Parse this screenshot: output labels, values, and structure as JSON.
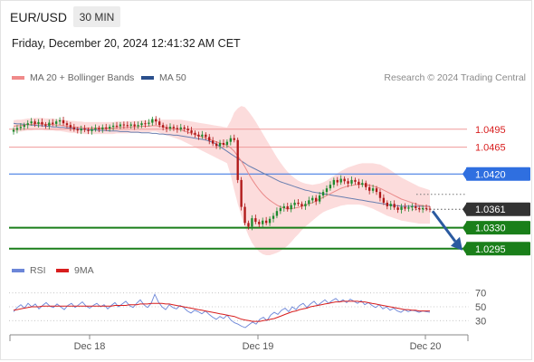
{
  "header": {
    "symbol": "EUR/USD",
    "interval": "30 MIN",
    "datetime": "Friday, December 20, 2024 12:41:32 AM CET"
  },
  "legend": {
    "main": [
      {
        "label": "MA 20 + Bollinger Bands",
        "color": "#f08a8a"
      },
      {
        "label": "MA 50",
        "color": "#2a4f8c"
      }
    ],
    "rsi": [
      {
        "label": "RSI",
        "color": "#6c86d8"
      },
      {
        "label": "9MA",
        "color": "#d81e1e"
      }
    ]
  },
  "copyright": "Research © 2024 Trading Central",
  "colors": {
    "resistance": "#d81e1e",
    "pivot": "#2f6fe0",
    "support": "#1a7f1a",
    "last": "#333333",
    "candle_up": "#1e8a2e",
    "candle_down": "#b01818",
    "band": "#fbd6d6",
    "ma50": "#6a7fb0",
    "ma20": "#ea8a8a",
    "arrow": "#2a5aa0"
  },
  "chart_data": [
    {
      "type": "candlestick",
      "title": "EUR/USD",
      "x_ticks": [
        "Dec 18",
        "Dec 19",
        "Dec 20"
      ],
      "ylim": [
        1.0278,
        1.0572
      ],
      "levels": [
        {
          "value": 1.0495,
          "label": "1.0495",
          "kind": "resistance"
        },
        {
          "value": 1.0465,
          "label": "1.0465",
          "kind": "resistance"
        },
        {
          "value": 1.042,
          "label": "1.0420",
          "kind": "pivot"
        },
        {
          "value": 1.0361,
          "label": "1.0361",
          "kind": "last"
        },
        {
          "value": 1.033,
          "label": "1.0330",
          "kind": "support"
        },
        {
          "value": 1.0295,
          "label": "1.0295",
          "kind": "support"
        }
      ],
      "close": [
        1.0494,
        1.0497,
        1.0499,
        1.0502,
        1.0505,
        1.0508,
        1.0504,
        1.0507,
        1.0503,
        1.0501,
        1.0506,
        1.0504,
        1.0508,
        1.051,
        1.0505,
        1.0502,
        1.0498,
        1.0495,
        1.0493,
        1.0496,
        1.0494,
        1.0492,
        1.0495,
        1.0497,
        1.0495,
        1.0498,
        1.0496,
        1.0499,
        1.0501,
        1.05,
        1.0503,
        1.0502,
        1.0501,
        1.0503,
        1.05,
        1.0502,
        1.0505,
        1.0504,
        1.0506,
        1.0512,
        1.0508,
        1.0502,
        1.0498,
        1.0496,
        1.0499,
        1.0497,
        1.0495,
        1.0498,
        1.0496,
        1.0493,
        1.0489,
        1.0486,
        1.0483,
        1.0486,
        1.0482,
        1.0476,
        1.0471,
        1.0467,
        1.0472,
        1.0469,
        1.0474,
        1.048,
        1.0477,
        1.041,
        1.0365,
        1.0338,
        1.0332,
        1.0346,
        1.034,
        1.0336,
        1.0342,
        1.0338,
        1.0345,
        1.035,
        1.0358,
        1.0363,
        1.0366,
        1.0361,
        1.0368,
        1.0372,
        1.037,
        1.0366,
        1.037,
        1.0376,
        1.038,
        1.0374,
        1.0384,
        1.039,
        1.0396,
        1.0402,
        1.041,
        1.0406,
        1.0412,
        1.0408,
        1.0404,
        1.041,
        1.0407,
        1.0402,
        1.0405,
        1.0398,
        1.0392,
        1.0396,
        1.039,
        1.038,
        1.0372,
        1.0366,
        1.037,
        1.0364,
        1.036,
        1.0365,
        1.0362,
        1.0364,
        1.0366,
        1.0363,
        1.0361,
        1.0363,
        1.0362,
        1.0361
      ],
      "ma50": [
        1.0505,
        1.0504,
        1.0504,
        1.0503,
        1.0503,
        1.0502,
        1.0502,
        1.0501,
        1.0501,
        1.05,
        1.05,
        1.0499,
        1.0499,
        1.0498,
        1.0498,
        1.0497,
        1.0497,
        1.0496,
        1.0496,
        1.0495,
        1.0495,
        1.0494,
        1.0494,
        1.0494,
        1.0493,
        1.0493,
        1.0493,
        1.0492,
        1.0492,
        1.0492,
        1.0491,
        1.0491,
        1.0491,
        1.049,
        1.049,
        1.049,
        1.0489,
        1.0489,
        1.0489,
        1.0488,
        1.0488,
        1.0487,
        1.0487,
        1.0486,
        1.0486,
        1.0485,
        1.0485,
        1.0484,
        1.0483,
        1.0482,
        1.0481,
        1.048,
        1.0479,
        1.0478,
        1.0477,
        1.0475,
        1.0473,
        1.047,
        1.0466,
        1.0462,
        1.0458,
        1.0454,
        1.045,
        1.0446,
        1.0442,
        1.0438,
        1.0434,
        1.0431,
        1.0428,
        1.0425,
        1.0422,
        1.0419,
        1.0416,
        1.0413,
        1.041,
        1.0407,
        1.0405,
        1.0403,
        1.0401,
        1.0399,
        1.0397,
        1.0395,
        1.0393,
        1.0392,
        1.039,
        1.0389,
        1.0388,
        1.0387,
        1.0386,
        1.0385,
        1.0384,
        1.0383,
        1.0382,
        1.0381,
        1.038,
        1.0379,
        1.0378,
        1.0377,
        1.0376,
        1.0375,
        1.0374,
        1.0373,
        1.0372,
        1.0371,
        1.037,
        1.0369,
        1.0368,
        1.0367,
        1.0367,
        1.0366,
        1.0366,
        1.0366,
        1.0366,
        1.0366,
        1.0366,
        1.0366,
        1.0366,
        1.0366
      ],
      "ma20": [
        1.05,
        1.0501,
        1.0501,
        1.0502,
        1.0503,
        1.0503,
        1.0504,
        1.0504,
        1.0504,
        1.0503,
        1.0503,
        1.0503,
        1.0502,
        1.0502,
        1.0501,
        1.05,
        1.0499,
        1.0499,
        1.0498,
        1.0498,
        1.0497,
        1.0497,
        1.0497,
        1.0497,
        1.0497,
        1.0497,
        1.0497,
        1.0497,
        1.0497,
        1.0498,
        1.0498,
        1.0498,
        1.0498,
        1.0499,
        1.0499,
        1.0499,
        1.05,
        1.05,
        1.05,
        1.0501,
        1.0501,
        1.05,
        1.0499,
        1.0498,
        1.0497,
        1.0496,
        1.0495,
        1.0494,
        1.0492,
        1.049,
        1.0488,
        1.0486,
        1.0484,
        1.0482,
        1.048,
        1.0478,
        1.0476,
        1.0474,
        1.0472,
        1.047,
        1.0468,
        1.0464,
        1.0458,
        1.045,
        1.0442,
        1.0432,
        1.0421,
        1.0411,
        1.0402,
        1.0394,
        1.0387,
        1.0381,
        1.0376,
        1.0372,
        1.0368,
        1.0365,
        1.0363,
        1.0362,
        1.0362,
        1.0363,
        1.0364,
        1.0366,
        1.0368,
        1.037,
        1.0372,
        1.0375,
        1.0378,
        1.0381,
        1.0384,
        1.0387,
        1.039,
        1.0393,
        1.0396,
        1.0398,
        1.04,
        1.0401,
        1.0402,
        1.0403,
        1.0403,
        1.0402,
        1.0401,
        1.04,
        1.0398,
        1.0396,
        1.0393,
        1.039,
        1.0387,
        1.0384,
        1.0381,
        1.0378,
        1.0376,
        1.0374,
        1.0372,
        1.037,
        1.0368,
        1.0367,
        1.0366,
        1.0365
      ],
      "band_width": [
        0.001,
        0.001,
        0.001,
        0.001,
        0.001,
        0.001,
        0.001,
        0.001,
        0.001,
        0.001,
        0.001,
        0.001,
        0.001,
        0.001,
        0.001,
        0.001,
        0.001,
        0.001,
        0.001,
        0.001,
        0.001,
        0.001,
        0.001,
        0.001,
        0.001,
        0.001,
        0.001,
        0.001,
        0.001,
        0.001,
        0.001,
        0.001,
        0.001,
        0.001,
        0.001,
        0.001,
        0.001,
        0.001,
        0.001,
        0.001,
        0.001,
        0.0011,
        0.0012,
        0.0013,
        0.0014,
        0.0015,
        0.0016,
        0.0017,
        0.0018,
        0.0019,
        0.002,
        0.0021,
        0.0022,
        0.0023,
        0.0024,
        0.0025,
        0.0026,
        0.0027,
        0.0028,
        0.0029,
        0.003,
        0.0045,
        0.0065,
        0.008,
        0.0092,
        0.01,
        0.0104,
        0.0106,
        0.0106,
        0.0104,
        0.0101,
        0.0097,
        0.0092,
        0.0086,
        0.008,
        0.0074,
        0.0068,
        0.0062,
        0.0056,
        0.005,
        0.0045,
        0.004,
        0.0036,
        0.0033,
        0.003,
        0.0028,
        0.0026,
        0.0025,
        0.0025,
        0.0026,
        0.0027,
        0.0028,
        0.0029,
        0.003,
        0.0031,
        0.0032,
        0.0033,
        0.0034,
        0.0035,
        0.0036,
        0.0037,
        0.0038,
        0.0039,
        0.004,
        0.004,
        0.004,
        0.0039,
        0.0038,
        0.0037,
        0.0036,
        0.0035,
        0.0034,
        0.0033,
        0.0032,
        0.0031,
        0.003,
        0.0029,
        0.0028,
        0.0027,
        0.0026
      ],
      "projection": {
        "from": 1.0361,
        "to": 1.0295
      }
    },
    {
      "type": "line",
      "x_ticks": [
        "Dec 18",
        "Dec 19",
        "Dec 20"
      ],
      "ylim": [
        20,
        80
      ],
      "y_ticks": [
        70,
        50,
        30
      ],
      "series": [
        {
          "name": "RSI",
          "values": [
            43,
            49,
            53,
            48,
            55,
            50,
            54,
            47,
            52,
            56,
            51,
            49,
            54,
            50,
            46,
            52,
            55,
            49,
            53,
            57,
            51,
            48,
            52,
            55,
            50,
            53,
            47,
            52,
            56,
            50,
            54,
            58,
            52,
            49,
            55,
            60,
            53,
            49,
            55,
            68,
            57,
            50,
            46,
            53,
            49,
            47,
            52,
            49,
            44,
            41,
            45,
            43,
            40,
            44,
            39,
            35,
            32,
            36,
            33,
            38,
            31,
            27,
            25,
            22,
            20,
            24,
            28,
            25,
            32,
            35,
            30,
            38,
            42,
            39,
            45,
            48,
            43,
            50,
            46,
            52,
            55,
            49,
            54,
            58,
            52,
            56,
            60,
            55,
            59,
            62,
            57,
            60,
            56,
            61,
            58,
            55,
            59,
            53,
            56,
            52,
            49,
            53,
            47,
            50,
            45,
            48,
            44,
            42,
            46,
            43,
            45,
            44,
            42,
            44,
            43,
            42
          ]
        },
        {
          "name": "9MA",
          "values": [
            45,
            46,
            47,
            48,
            49,
            50,
            50,
            50,
            51,
            51,
            51,
            51,
            51,
            51,
            51,
            51,
            51,
            51,
            51,
            51,
            51,
            51,
            51,
            51,
            51,
            51,
            51,
            51,
            52,
            52,
            52,
            52,
            53,
            53,
            53,
            54,
            54,
            54,
            55,
            55,
            55,
            55,
            54,
            54,
            53,
            52,
            51,
            50,
            49,
            48,
            47,
            46,
            45,
            44,
            43,
            42,
            41,
            40,
            39,
            38,
            37,
            36,
            34,
            32,
            31,
            30,
            29,
            29,
            29,
            30,
            31,
            32,
            33,
            35,
            37,
            39,
            41,
            43,
            44,
            46,
            47,
            48,
            50,
            51,
            52,
            53,
            54,
            55,
            56,
            57,
            57,
            58,
            58,
            58,
            58,
            58,
            57,
            57,
            56,
            55,
            54,
            53,
            52,
            51,
            50,
            49,
            48,
            47,
            46,
            46,
            45,
            45,
            44,
            44,
            44,
            44
          ]
        }
      ]
    }
  ]
}
